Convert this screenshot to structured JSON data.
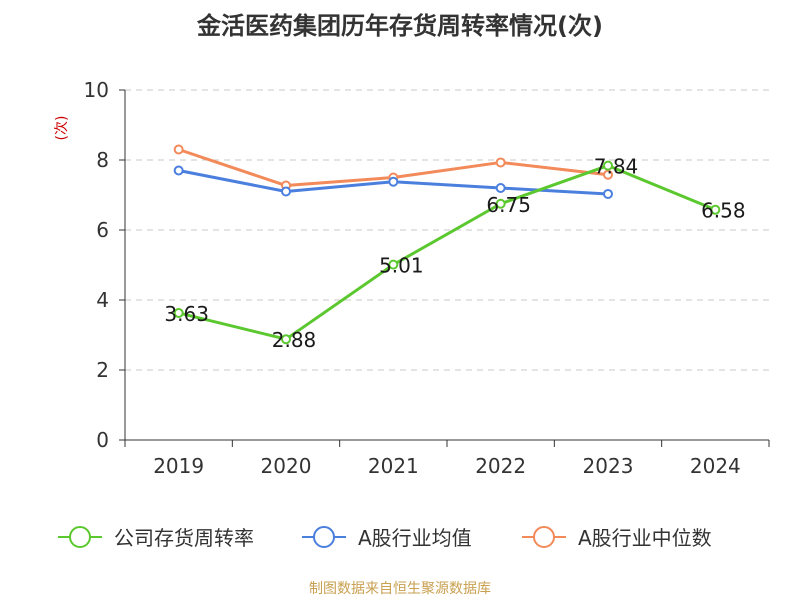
{
  "title": "金活医药集团历年存货周转率情况(次)",
  "footer": "制图数据来自恒生聚源数据库",
  "chart_data": {
    "type": "line",
    "title": "金活医药集团历年存货周转率情况(次)",
    "ylabel": "(次)",
    "xlabel": "",
    "categories": [
      "2019",
      "2020",
      "2021",
      "2022",
      "2023",
      "2024"
    ],
    "ylim": [
      0,
      10
    ],
    "yticks": [
      0,
      2,
      4,
      6,
      8,
      10
    ],
    "grid": true,
    "legend_position": "bottom",
    "series": [
      {
        "name": "公司存货周转率",
        "color": "#5cc82f",
        "values": [
          3.63,
          2.88,
          5.01,
          6.75,
          7.84,
          6.58
        ],
        "show_labels": true
      },
      {
        "name": "A股行业均值",
        "color": "#4a7fde",
        "values": [
          7.7,
          7.1,
          7.38,
          7.2,
          7.03,
          null
        ],
        "show_labels": false
      },
      {
        "name": "A股行业中位数",
        "color": "#f28a5a",
        "values": [
          8.3,
          7.27,
          7.5,
          7.93,
          7.58,
          null
        ],
        "show_labels": false
      }
    ]
  }
}
